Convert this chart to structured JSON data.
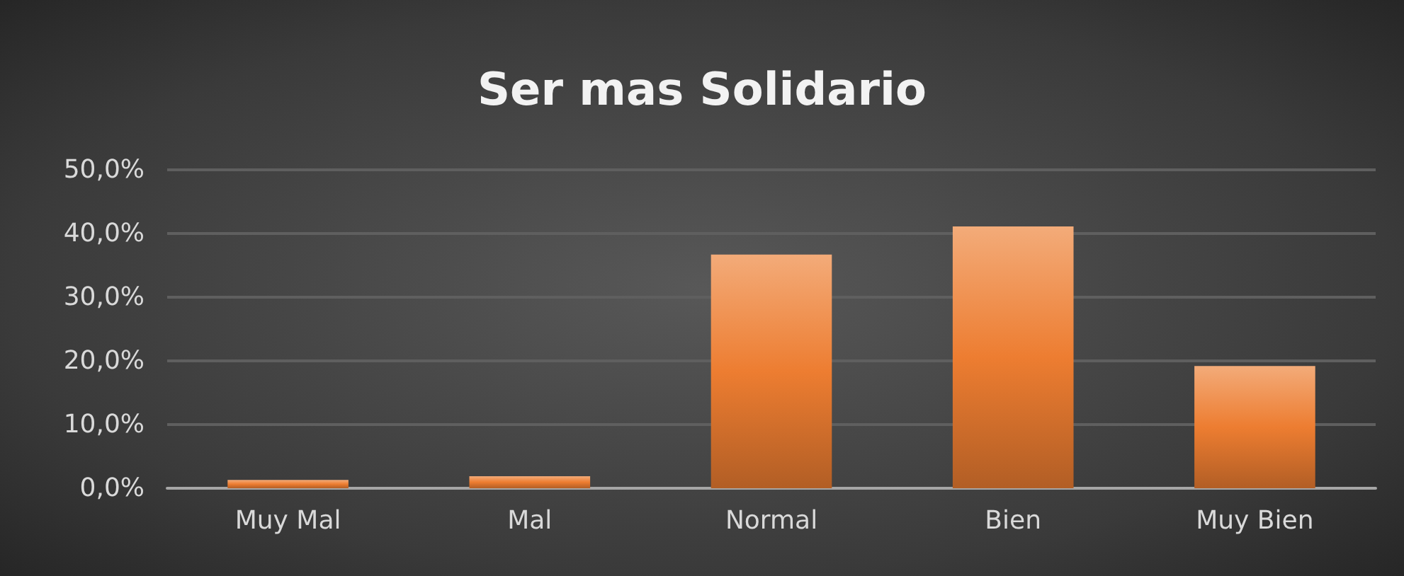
{
  "chart_data": {
    "type": "bar",
    "title": "Ser mas Solidario",
    "categories": [
      "Muy Mal",
      "Mal",
      "Normal",
      "Bien",
      "Muy Bien"
    ],
    "values": [
      1.3,
      1.9,
      36.7,
      41.1,
      19.2
    ],
    "color": "#ed7d31",
    "ylim": [
      0,
      50
    ],
    "yticks": [
      {
        "value": 0,
        "label": "0,0%"
      },
      {
        "value": 10,
        "label": "10,0%"
      },
      {
        "value": 20,
        "label": "20,0%"
      },
      {
        "value": 30,
        "label": "30,0%"
      },
      {
        "value": 40,
        "label": "40,0%"
      },
      {
        "value": 50,
        "label": "50,0%"
      }
    ],
    "grid": "y"
  }
}
